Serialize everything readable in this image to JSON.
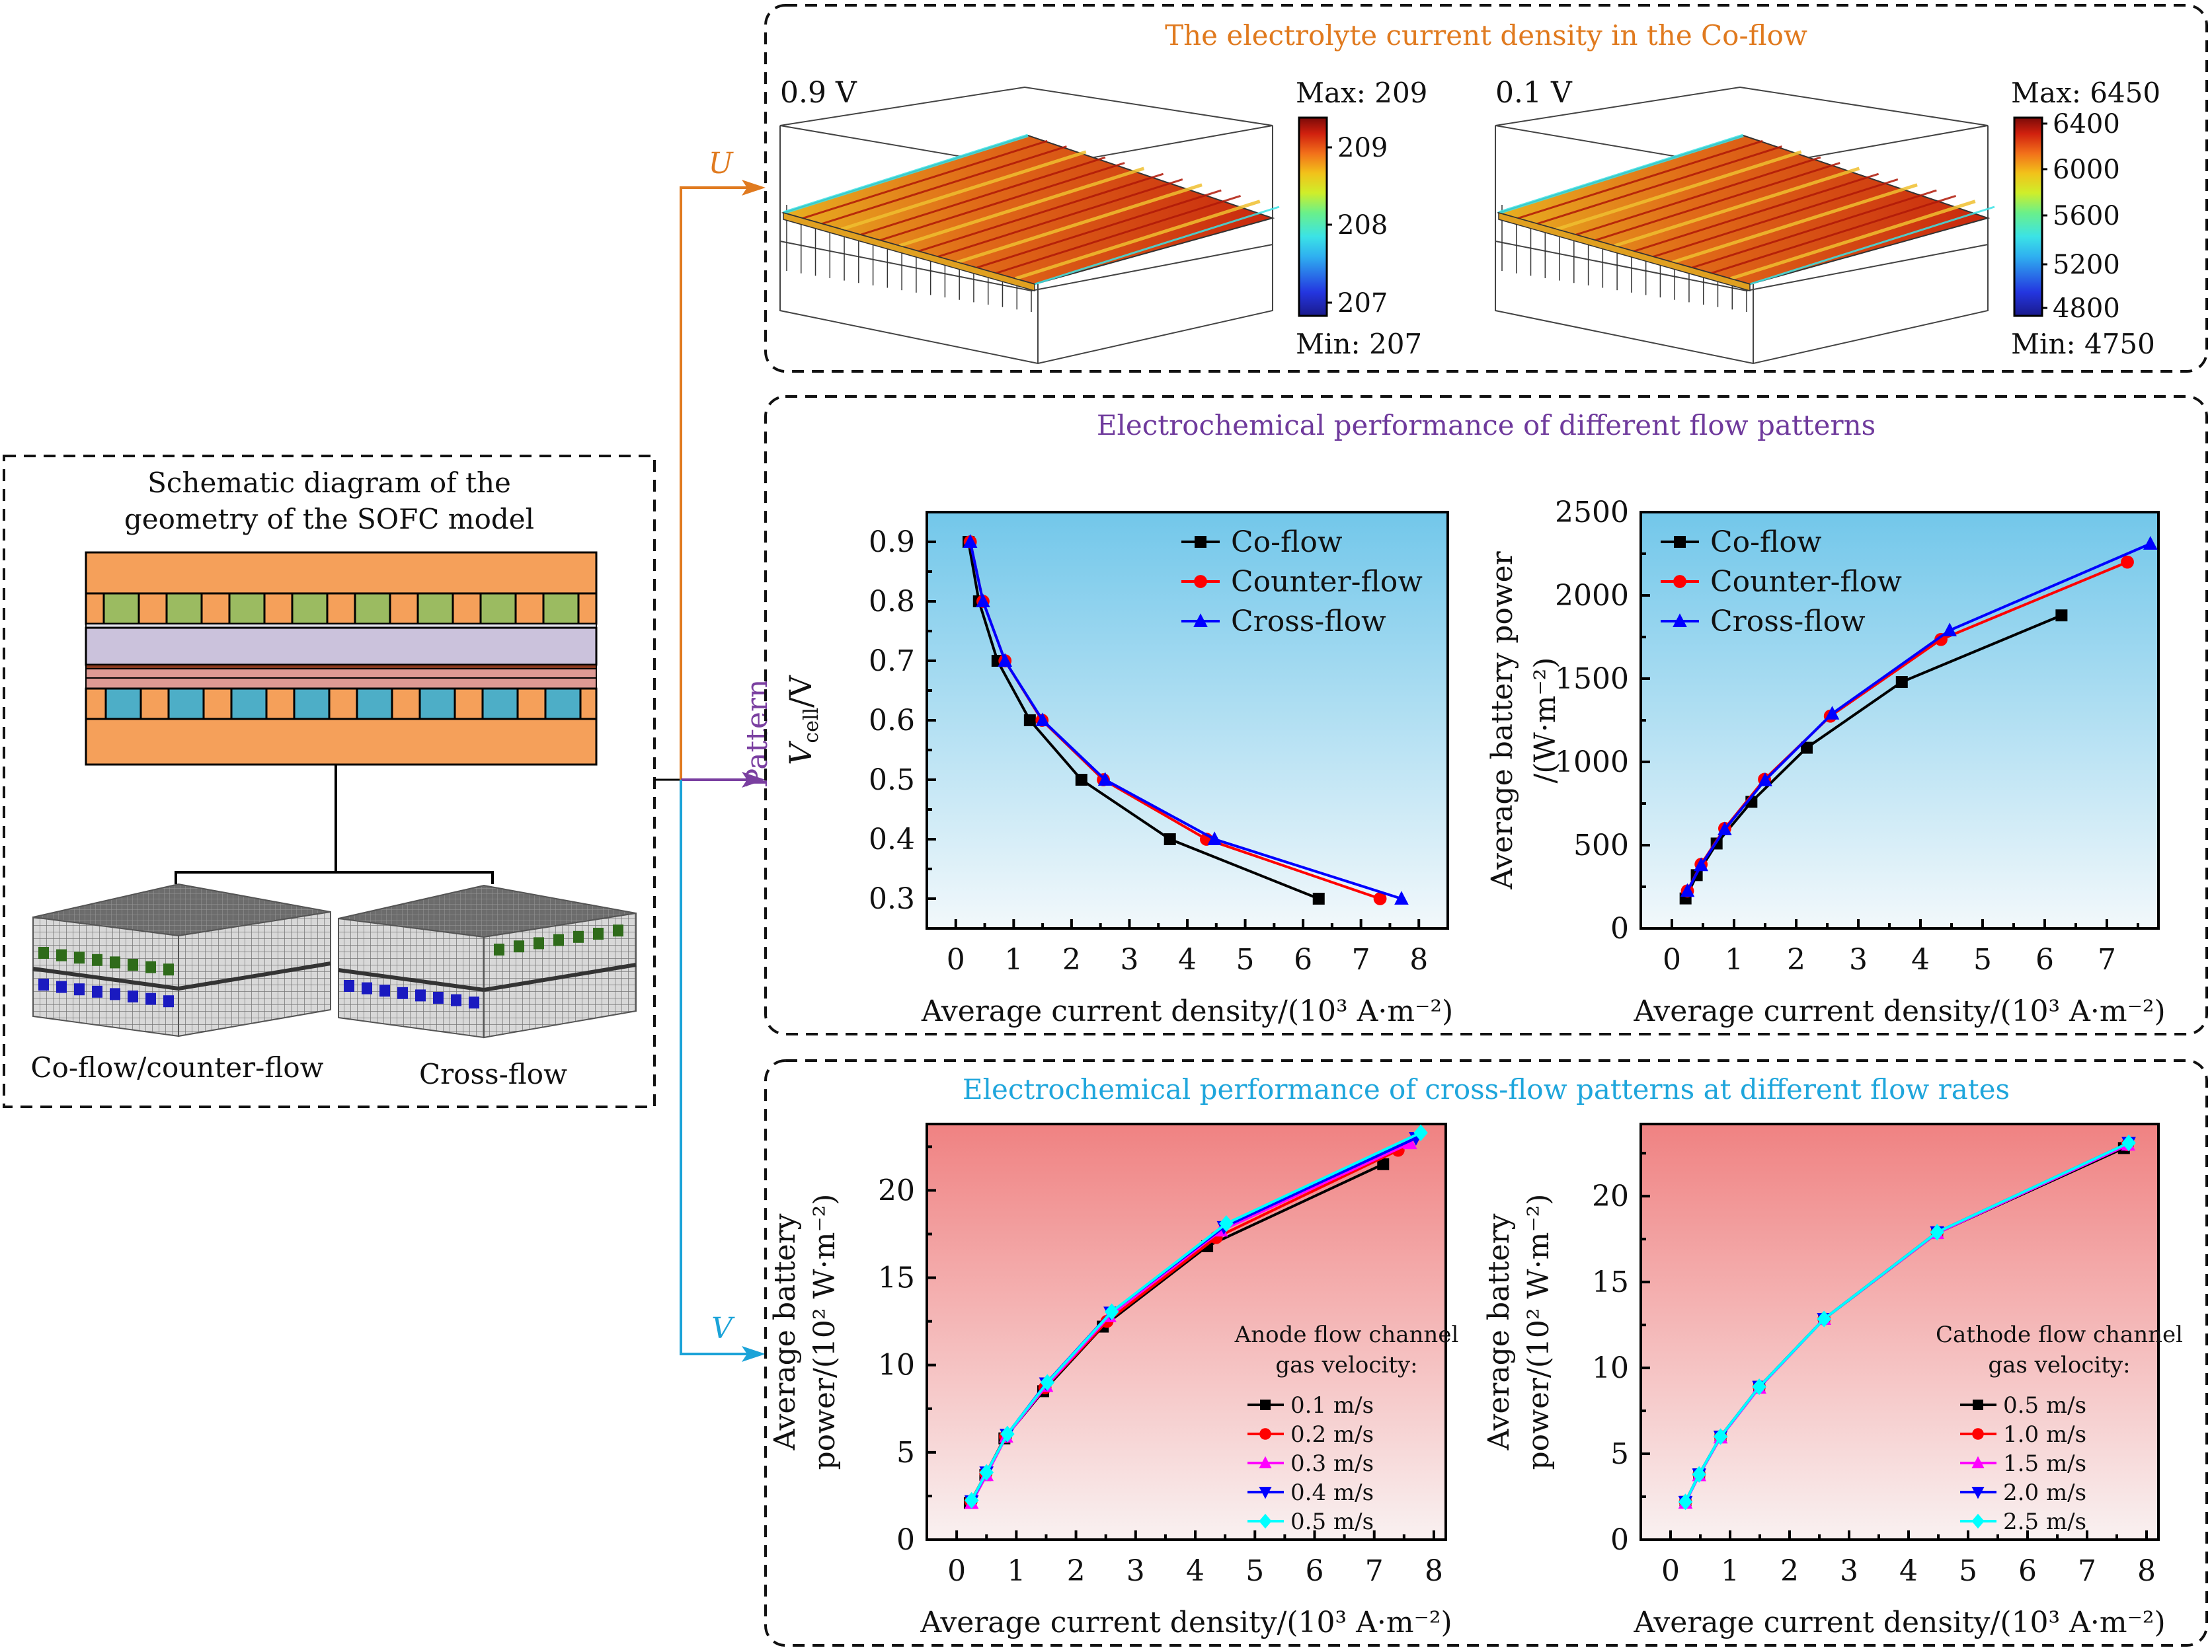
{
  "colors": {
    "u_arrow": "#e07a1f",
    "pattern_arrow": "#7a3fa0",
    "v_arrow": "#1ba3d8",
    "top_title": "#e07a1f",
    "mid_title": "#6f3a9c",
    "bottom_title": "#1fa6dc",
    "blue_bg_top": "#72c7ea",
    "blue_bg_bottom": "#f2f8fb",
    "red_bg_top": "#f08282",
    "red_bg_bottom": "#f9f1f1",
    "schematic_orange": "#f5a05a",
    "schematic_green": "#9bbb61",
    "schematic_lavender": "#cbc2dc",
    "schematic_pink": "#de9a94",
    "schematic_blue": "#4daec7"
  },
  "left": {
    "title_line1": "Schematic diagram of the",
    "title_line2": "geometry of the SOFC model",
    "label_coflow": "Co-flow/counter-flow",
    "label_crossflow": "Cross-flow"
  },
  "arrows": {
    "u": "U",
    "pattern": "Pattern",
    "v": "V"
  },
  "top_panel": {
    "title": "The electrolyte current density in the Co-flow",
    "maps": [
      {
        "voltage": "0.9 V",
        "max_label": "Max: 209",
        "min_label": "Min: 207",
        "ticks": [
          "209",
          "208",
          "207"
        ]
      },
      {
        "voltage": "0.1 V",
        "max_label": "Max: 6450",
        "min_label": "Min: 4750",
        "ticks": [
          "6400",
          "6000",
          "5600",
          "5200",
          "4800"
        ]
      }
    ]
  },
  "mid_panel": {
    "title": "Electrochemical performance of different flow patterns"
  },
  "bottom_panel": {
    "title": "Electrochemical performance of cross-flow patterns at different flow rates"
  },
  "chart_data": [
    {
      "type": "line",
      "title": "",
      "xlabel": "Average current density/(10³ A·m⁻²)",
      "ylabel": "V_cell/V",
      "xlim": [
        -0.5,
        8.5
      ],
      "ylim": [
        0.25,
        0.95
      ],
      "xticks": [
        0,
        1,
        2,
        3,
        4,
        5,
        6,
        7,
        8
      ],
      "yticks": [
        0.3,
        0.4,
        0.5,
        0.6,
        0.7,
        0.8,
        0.9
      ],
      "ytick_labels": [
        "0.3",
        "0.4",
        "0.5",
        "0.6",
        "0.7",
        "0.8",
        "0.9"
      ],
      "legend": "top-right",
      "background": "blue-gradient",
      "series": [
        {
          "name": "Co-flow",
          "color": "#000000",
          "marker": "square",
          "x": [
            0.22,
            0.4,
            0.72,
            1.28,
            2.17,
            3.7,
            6.27
          ],
          "y": [
            0.9,
            0.8,
            0.7,
            0.6,
            0.5,
            0.4,
            0.3
          ]
        },
        {
          "name": "Counter-flow",
          "color": "#ff0000",
          "marker": "circle",
          "x": [
            0.25,
            0.47,
            0.85,
            1.49,
            2.55,
            4.33,
            7.33
          ],
          "y": [
            0.9,
            0.8,
            0.7,
            0.6,
            0.5,
            0.4,
            0.3
          ]
        },
        {
          "name": "Cross-flow",
          "color": "#0000ff",
          "marker": "triangle-up",
          "x": [
            0.25,
            0.47,
            0.85,
            1.5,
            2.58,
            4.47,
            7.7
          ],
          "y": [
            0.9,
            0.8,
            0.7,
            0.6,
            0.5,
            0.4,
            0.3
          ]
        }
      ]
    },
    {
      "type": "line",
      "title": "",
      "xlabel": "Average current density/(10³ A·m⁻²)",
      "ylabel_line1": "Average battery power",
      "ylabel_line2": "/(W·m⁻²)",
      "xlim": [
        -0.5,
        7.83
      ],
      "ylim": [
        0,
        2500
      ],
      "xticks": [
        0,
        1,
        2,
        3,
        4,
        5,
        6,
        7
      ],
      "yticks": [
        0,
        500,
        1000,
        1500,
        2000,
        2500
      ],
      "ytick_labels": [
        "0",
        "500",
        "1000",
        "1500",
        "2000",
        "2500"
      ],
      "legend": "top-left",
      "background": "blue-gradient",
      "series": [
        {
          "name": "Co-flow",
          "color": "#000000",
          "marker": "square",
          "x": [
            0.22,
            0.4,
            0.72,
            1.28,
            2.17,
            3.7,
            6.27
          ],
          "y": [
            180,
            320,
            510,
            760,
            1085,
            1480,
            1880
          ]
        },
        {
          "name": "Counter-flow",
          "color": "#ff0000",
          "marker": "circle",
          "x": [
            0.25,
            0.47,
            0.85,
            1.49,
            2.55,
            4.33,
            7.33
          ],
          "y": [
            225,
            385,
            600,
            895,
            1275,
            1735,
            2200
          ]
        },
        {
          "name": "Cross-flow",
          "color": "#0000ff",
          "marker": "triangle-up",
          "x": [
            0.25,
            0.47,
            0.85,
            1.5,
            2.58,
            4.47,
            7.7
          ],
          "y": [
            225,
            380,
            595,
            890,
            1290,
            1790,
            2310
          ]
        }
      ]
    },
    {
      "type": "line",
      "title": "",
      "xlabel": "Average current density/(10³ A·m⁻²)",
      "ylabel_line1": "Average battery",
      "ylabel_line2": "power/(10² W·m⁻²)",
      "xlim": [
        -0.5,
        8.2
      ],
      "ylim": [
        0,
        23.8
      ],
      "xticks": [
        0,
        1,
        2,
        3,
        4,
        5,
        6,
        7,
        8
      ],
      "yticks": [
        0,
        5,
        10,
        15,
        20
      ],
      "ytick_labels": [
        "0",
        "5",
        "10",
        "15",
        "20"
      ],
      "legend_title_line1": "Anode flow channel",
      "legend_title_line2": "gas velocity:",
      "legend": "bottom-right",
      "background": "red-gradient",
      "series": [
        {
          "name": "0.1 m/s",
          "color": "#000000",
          "marker": "square",
          "x": [
            0.22,
            0.48,
            0.8,
            1.45,
            2.45,
            4.2,
            7.15
          ],
          "y": [
            2.1,
            3.7,
            5.8,
            8.5,
            12.2,
            16.8,
            21.5
          ]
        },
        {
          "name": "0.2 m/s",
          "color": "#ff0000",
          "marker": "circle",
          "x": [
            0.24,
            0.49,
            0.82,
            1.48,
            2.52,
            4.35,
            7.4
          ],
          "y": [
            2.2,
            3.8,
            5.9,
            8.7,
            12.5,
            17.3,
            22.3
          ]
        },
        {
          "name": "0.3 m/s",
          "color": "#ff00ff",
          "marker": "triangle-up",
          "x": [
            0.25,
            0.5,
            0.83,
            1.5,
            2.56,
            4.43,
            7.6
          ],
          "y": [
            2.1,
            3.7,
            5.9,
            8.8,
            12.8,
            17.7,
            22.7
          ]
        },
        {
          "name": "0.4 m/s",
          "color": "#0000ff",
          "marker": "triangle-down",
          "x": [
            0.25,
            0.5,
            0.84,
            1.5,
            2.58,
            4.48,
            7.7
          ],
          "y": [
            2.2,
            3.85,
            6.0,
            8.95,
            13.0,
            17.9,
            23.0
          ]
        },
        {
          "name": "0.5 m/s",
          "color": "#00ffff",
          "marker": "diamond",
          "x": [
            0.25,
            0.5,
            0.85,
            1.52,
            2.6,
            4.52,
            7.78
          ],
          "y": [
            2.25,
            3.85,
            6.05,
            9.0,
            13.05,
            18.1,
            23.3
          ]
        }
      ]
    },
    {
      "type": "line",
      "title": "",
      "xlabel": "Average current density/(10³ A·m⁻²)",
      "ylabel_line1": "Average battery",
      "ylabel_line2": "power/(10² W·m⁻²)",
      "xlim": [
        -0.5,
        8.2
      ],
      "ylim": [
        0,
        24.2
      ],
      "xticks": [
        0,
        1,
        2,
        3,
        4,
        5,
        6,
        7,
        8
      ],
      "yticks": [
        0,
        5,
        10,
        15,
        20
      ],
      "ytick_labels": [
        "0",
        "5",
        "10",
        "15",
        "20"
      ],
      "legend_title_line1": "Cathode flow channel",
      "legend_title_line2": "gas velocity:",
      "legend": "bottom-right",
      "background": "red-gradient",
      "series": [
        {
          "name": "0.5 m/s",
          "color": "#000000",
          "marker": "square",
          "x": [
            0.25,
            0.48,
            0.84,
            1.49,
            2.58,
            4.48,
            7.62
          ],
          "y": [
            2.2,
            3.8,
            6.0,
            8.9,
            12.85,
            17.85,
            22.8
          ]
        },
        {
          "name": "1.0 m/s",
          "color": "#ff0000",
          "marker": "circle",
          "x": [
            0.25,
            0.48,
            0.84,
            1.49,
            2.58,
            4.48,
            7.68
          ],
          "y": [
            2.2,
            3.8,
            6.0,
            8.9,
            12.85,
            17.9,
            23.0
          ]
        },
        {
          "name": "1.5 m/s",
          "color": "#ff00ff",
          "marker": "triangle-up",
          "x": [
            0.25,
            0.48,
            0.84,
            1.49,
            2.58,
            4.48,
            7.69
          ],
          "y": [
            2.15,
            3.75,
            5.95,
            8.85,
            12.85,
            17.85,
            23.0
          ]
        },
        {
          "name": "2.0 m/s",
          "color": "#0000ff",
          "marker": "triangle-down",
          "x": [
            0.25,
            0.48,
            0.84,
            1.49,
            2.58,
            4.48,
            7.7
          ],
          "y": [
            2.2,
            3.8,
            6.0,
            8.9,
            12.85,
            17.9,
            23.1
          ]
        },
        {
          "name": "2.5 m/s",
          "color": "#00ffff",
          "marker": "diamond",
          "x": [
            0.25,
            0.48,
            0.84,
            1.49,
            2.58,
            4.48,
            7.7
          ],
          "y": [
            2.2,
            3.8,
            6.0,
            8.9,
            12.85,
            17.9,
            23.1
          ]
        }
      ]
    }
  ]
}
